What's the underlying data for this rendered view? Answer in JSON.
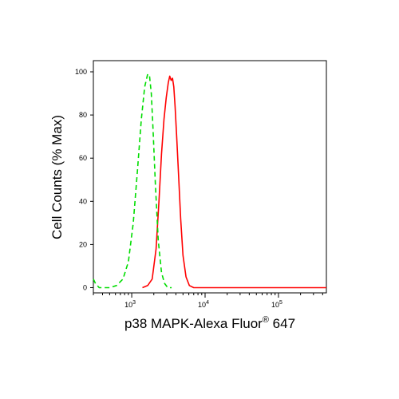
{
  "chart_data": {
    "type": "line",
    "xlabel": "p38 MAPK-Alexa Fluor",
    "xlabel_sup": "®",
    "xlabel_suffix": " 647",
    "ylabel": "Cell Counts (% Max)",
    "xscale": "log",
    "xlim": [
      300,
      450000
    ],
    "ylim": [
      0,
      105
    ],
    "grid": false,
    "x_ticks": [
      {
        "value": 1000,
        "base": "10",
        "exp": "3"
      },
      {
        "value": 10000,
        "base": "10",
        "exp": "4"
      },
      {
        "value": 100000,
        "base": "10",
        "exp": "5"
      }
    ],
    "y_ticks": [
      {
        "value": 0,
        "label": "0"
      },
      {
        "value": 20,
        "label": "20"
      },
      {
        "value": 40,
        "label": "40"
      },
      {
        "value": 60,
        "label": "60"
      },
      {
        "value": 80,
        "label": "80"
      },
      {
        "value": 100,
        "label": "100"
      }
    ],
    "series": [
      {
        "color": "#ff0000",
        "style": "solid",
        "x": [
          1400,
          1650,
          1900,
          2150,
          2350,
          2550,
          2750,
          2950,
          3150,
          3300,
          3450,
          3600,
          3750,
          3900,
          4100,
          4350,
          4650,
          5000,
          5500,
          6100,
          7000,
          8500,
          11000,
          20000,
          50000,
          150000,
          450000
        ],
        "y": [
          0,
          1,
          4,
          18,
          40,
          62,
          78,
          88,
          95,
          98,
          96,
          97,
          93,
          84,
          70,
          52,
          32,
          15,
          5,
          1,
          0,
          0,
          0,
          0,
          0,
          0,
          0
        ]
      },
      {
        "color": "#00dd00",
        "style": "dashed",
        "x": [
          300,
          320,
          360,
          420,
          500,
          620,
          760,
          900,
          1050,
          1200,
          1350,
          1500,
          1650,
          1750,
          1850,
          1950,
          2100,
          2300,
          2550,
          2800,
          3100,
          3500
        ],
        "y": [
          4,
          2,
          0,
          0,
          0,
          1,
          4,
          12,
          30,
          55,
          78,
          93,
          99,
          98,
          90,
          74,
          48,
          22,
          7,
          2,
          0,
          0
        ]
      }
    ]
  }
}
